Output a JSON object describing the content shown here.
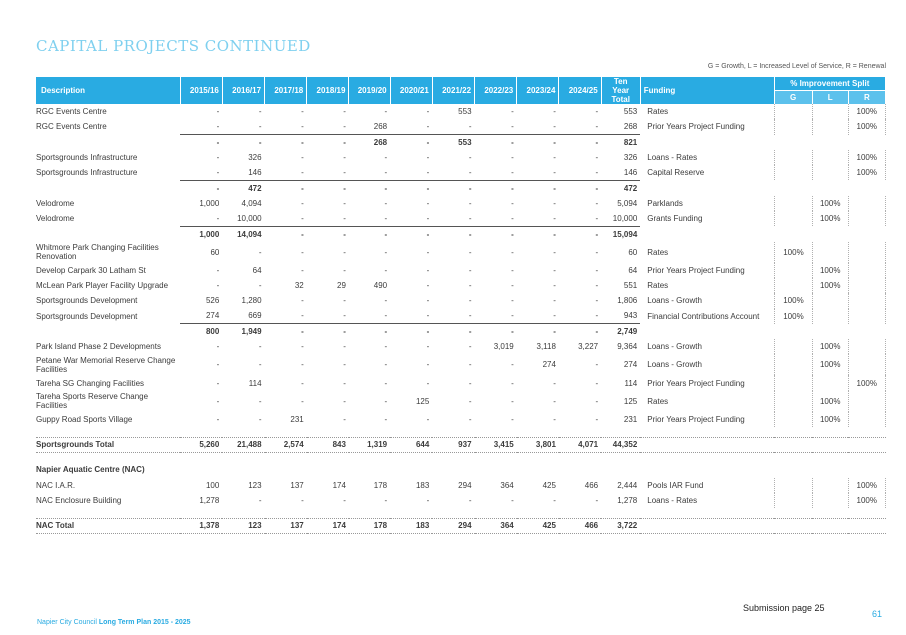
{
  "title": "CAPITAL PROJECTS CONTINUED",
  "legend_note": "G = Growth, L = Increased Level of Service, R = Renewal",
  "header": {
    "description": "Description",
    "years": [
      "2015/16",
      "2016/17",
      "2017/18",
      "2018/19",
      "2019/20",
      "2020/21",
      "2021/22",
      "2022/23",
      "2023/24",
      "2024/25"
    ],
    "ten_year_total": "Ten Year Total",
    "funding": "Funding",
    "improvement_split": "% Improvement Split",
    "g": "G",
    "l": "L",
    "r": "R"
  },
  "rows": [
    {
      "type": "item",
      "description": "RGC Events Centre",
      "values": [
        "-",
        "-",
        "-",
        "-",
        "-",
        "-",
        "553",
        "-",
        "-",
        "-"
      ],
      "total": "553",
      "funding": "Rates",
      "g": "",
      "l": "",
      "r": "100%"
    },
    {
      "type": "item",
      "description": "RGC Events Centre",
      "values": [
        "-",
        "-",
        "-",
        "-",
        "268",
        "-",
        "-",
        "-",
        "-",
        "-"
      ],
      "total": "268",
      "funding": "Prior Years Project Funding",
      "g": "",
      "l": "",
      "r": "100%"
    },
    {
      "type": "subtotal",
      "description": "",
      "values": [
        "-",
        "-",
        "-",
        "-",
        "268",
        "-",
        "553",
        "-",
        "-",
        "-"
      ],
      "total": "821"
    },
    {
      "type": "item",
      "description": "Sportsgrounds Infrastructure",
      "values": [
        "-",
        "326",
        "-",
        "-",
        "-",
        "-",
        "-",
        "-",
        "-",
        "-"
      ],
      "total": "326",
      "funding": "Loans - Rates",
      "g": "",
      "l": "",
      "r": "100%"
    },
    {
      "type": "item",
      "description": "Sportsgrounds Infrastructure",
      "values": [
        "-",
        "146",
        "-",
        "-",
        "-",
        "-",
        "-",
        "-",
        "-",
        "-"
      ],
      "total": "146",
      "funding": "Capital Reserve",
      "g": "",
      "l": "",
      "r": "100%"
    },
    {
      "type": "subtotal",
      "description": "",
      "values": [
        "-",
        "472",
        "-",
        "-",
        "-",
        "-",
        "-",
        "-",
        "-",
        "-"
      ],
      "total": "472"
    },
    {
      "type": "item",
      "description": "Velodrome",
      "values": [
        "1,000",
        "4,094",
        "-",
        "-",
        "-",
        "-",
        "-",
        "-",
        "-",
        "-"
      ],
      "total": "5,094",
      "funding": "Parklands",
      "g": "",
      "l": "100%",
      "r": ""
    },
    {
      "type": "item",
      "description": "Velodrome",
      "values": [
        "-",
        "10,000",
        "-",
        "-",
        "-",
        "-",
        "-",
        "-",
        "-",
        "-"
      ],
      "total": "10,000",
      "funding": "Grants Funding",
      "g": "",
      "l": "100%",
      "r": ""
    },
    {
      "type": "subtotal",
      "description": "",
      "values": [
        "1,000",
        "14,094",
        "-",
        "-",
        "-",
        "-",
        "-",
        "-",
        "-",
        "-"
      ],
      "total": "15,094"
    },
    {
      "type": "item2",
      "description": "Whitmore Park Changing Facilities Renovation",
      "values": [
        "60",
        "-",
        "-",
        "-",
        "-",
        "-",
        "-",
        "-",
        "-",
        "-"
      ],
      "total": "60",
      "funding": "Rates",
      "g": "100%",
      "l": "",
      "r": ""
    },
    {
      "type": "item",
      "description": "Develop Carpark 30 Latham St",
      "values": [
        "-",
        "64",
        "-",
        "-",
        "-",
        "-",
        "-",
        "-",
        "-",
        "-"
      ],
      "total": "64",
      "funding": "Prior Years Project Funding",
      "g": "",
      "l": "100%",
      "r": ""
    },
    {
      "type": "item",
      "description": "McLean Park Player Facility Upgrade",
      "values": [
        "-",
        "-",
        "32",
        "29",
        "490",
        "-",
        "-",
        "-",
        "-",
        "-"
      ],
      "total": "551",
      "funding": "Rates",
      "g": "",
      "l": "100%",
      "r": ""
    },
    {
      "type": "item",
      "description": "Sportsgrounds Development",
      "values": [
        "526",
        "1,280",
        "-",
        "-",
        "-",
        "-",
        "-",
        "-",
        "-",
        "-"
      ],
      "total": "1,806",
      "funding": "Loans - Growth",
      "g": "100%",
      "l": "",
      "r": ""
    },
    {
      "type": "item",
      "description": "Sportsgrounds Development",
      "values": [
        "274",
        "669",
        "-",
        "-",
        "-",
        "-",
        "-",
        "-",
        "-",
        "-"
      ],
      "total": "943",
      "funding": "Financial Contributions Account",
      "g": "100%",
      "l": "",
      "r": ""
    },
    {
      "type": "subtotal",
      "description": "",
      "values": [
        "800",
        "1,949",
        "-",
        "-",
        "-",
        "-",
        "-",
        "-",
        "-",
        "-"
      ],
      "total": "2,749"
    },
    {
      "type": "item",
      "description": "Park Island Phase 2 Developments",
      "values": [
        "-",
        "-",
        "-",
        "-",
        "-",
        "-",
        "-",
        "3,019",
        "3,118",
        "3,227"
      ],
      "total": "9,364",
      "funding": "Loans - Growth",
      "g": "",
      "l": "100%",
      "r": ""
    },
    {
      "type": "item2",
      "description": "Petane War Memorial Reserve Change Facilities",
      "values": [
        "-",
        "-",
        "-",
        "-",
        "-",
        "-",
        "-",
        "-",
        "274",
        "-"
      ],
      "total": "274",
      "funding": "Loans - Growth",
      "g": "",
      "l": "100%",
      "r": ""
    },
    {
      "type": "item",
      "description": "Tareha SG Changing Facilities",
      "values": [
        "-",
        "114",
        "-",
        "-",
        "-",
        "-",
        "-",
        "-",
        "-",
        "-"
      ],
      "total": "114",
      "funding": "Prior Years Project Funding",
      "g": "",
      "l": "",
      "r": "100%"
    },
    {
      "type": "item2",
      "description": "Tareha Sports Reserve Change Facilities",
      "values": [
        "-",
        "-",
        "-",
        "-",
        "-",
        "125",
        "-",
        "-",
        "-",
        "-"
      ],
      "total": "125",
      "funding": "Rates",
      "g": "",
      "l": "100%",
      "r": ""
    },
    {
      "type": "item",
      "description": "Guppy Road Sports Village",
      "values": [
        "-",
        "-",
        "231",
        "-",
        "-",
        "-",
        "-",
        "-",
        "-",
        "-"
      ],
      "total": "231",
      "funding": "Prior Years Project Funding",
      "g": "",
      "l": "100%",
      "r": ""
    },
    {
      "type": "gap"
    },
    {
      "type": "total",
      "description": "Sportsgrounds Total",
      "values": [
        "5,260",
        "21,488",
        "2,574",
        "843",
        "1,319",
        "644",
        "937",
        "3,415",
        "3,801",
        "4,071"
      ],
      "total": "44,352"
    },
    {
      "type": "gap"
    },
    {
      "type": "section",
      "description": "Napier Aquatic Centre (NAC)"
    },
    {
      "type": "item",
      "description": "NAC I.A.R.",
      "values": [
        "100",
        "123",
        "137",
        "174",
        "178",
        "183",
        "294",
        "364",
        "425",
        "466"
      ],
      "total": "2,444",
      "funding": "Pools IAR Fund",
      "g": "",
      "l": "",
      "r": "100%"
    },
    {
      "type": "item",
      "description": "NAC Enclosure Building",
      "values": [
        "1,278",
        "-",
        "-",
        "-",
        "-",
        "-",
        "-",
        "-",
        "-",
        "-"
      ],
      "total": "1,278",
      "funding": "Loans - Rates",
      "g": "",
      "l": "",
      "r": "100%"
    },
    {
      "type": "gap"
    },
    {
      "type": "total",
      "description": "NAC Total",
      "values": [
        "1,378",
        "123",
        "137",
        "174",
        "178",
        "183",
        "294",
        "364",
        "425",
        "466"
      ],
      "total": "3,722"
    }
  ],
  "footer": {
    "org": "Napier City Council",
    "plan": "Long Term Plan 2015 - 2025",
    "submission": "Submission page 25",
    "page_number": "61"
  },
  "colors": {
    "accent": "#29abe2",
    "title": "#7fd0ef",
    "subheader": "#5cc1ec"
  }
}
